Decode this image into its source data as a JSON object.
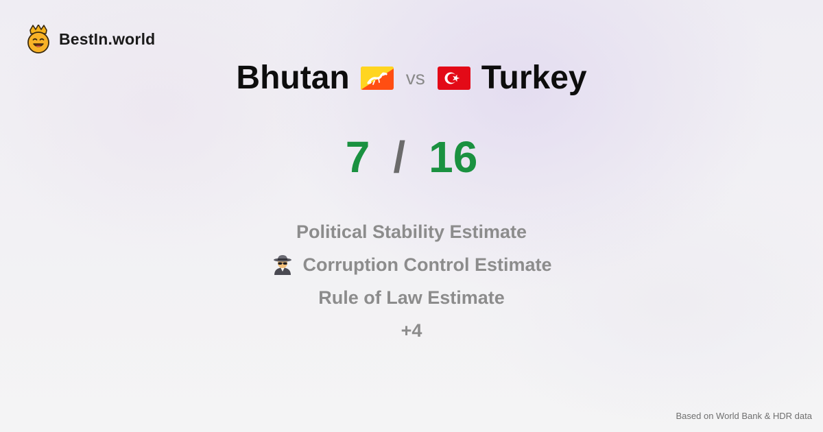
{
  "brand": {
    "name": "BestIn.world",
    "icon": "crowned-smiley-icon"
  },
  "comparison": {
    "left": {
      "country": "Bhutan",
      "flag": "bhutan-flag-icon",
      "score": "7"
    },
    "vs_label": "vs",
    "right": {
      "country": "Turkey",
      "flag": "turkey-flag-icon",
      "score": "16"
    },
    "separator": "/"
  },
  "metrics": [
    {
      "label": "Political Stability Estimate",
      "icon": ""
    },
    {
      "label": "Corruption Control Estimate",
      "icon": "spy-icon"
    },
    {
      "label": "Rule of Law Estimate",
      "icon": ""
    },
    {
      "label": "+4",
      "icon": ""
    }
  ],
  "footer": {
    "source_text": "Based on World Bank & HDR data"
  },
  "colors": {
    "score_green": "#1a9140",
    "metric_gray": "#8c8c8c",
    "title_black": "#0d0d0d",
    "turkey_red": "#e30a17",
    "bhutan_yellow": "#ffd520",
    "bhutan_orange": "#ff4e12"
  }
}
